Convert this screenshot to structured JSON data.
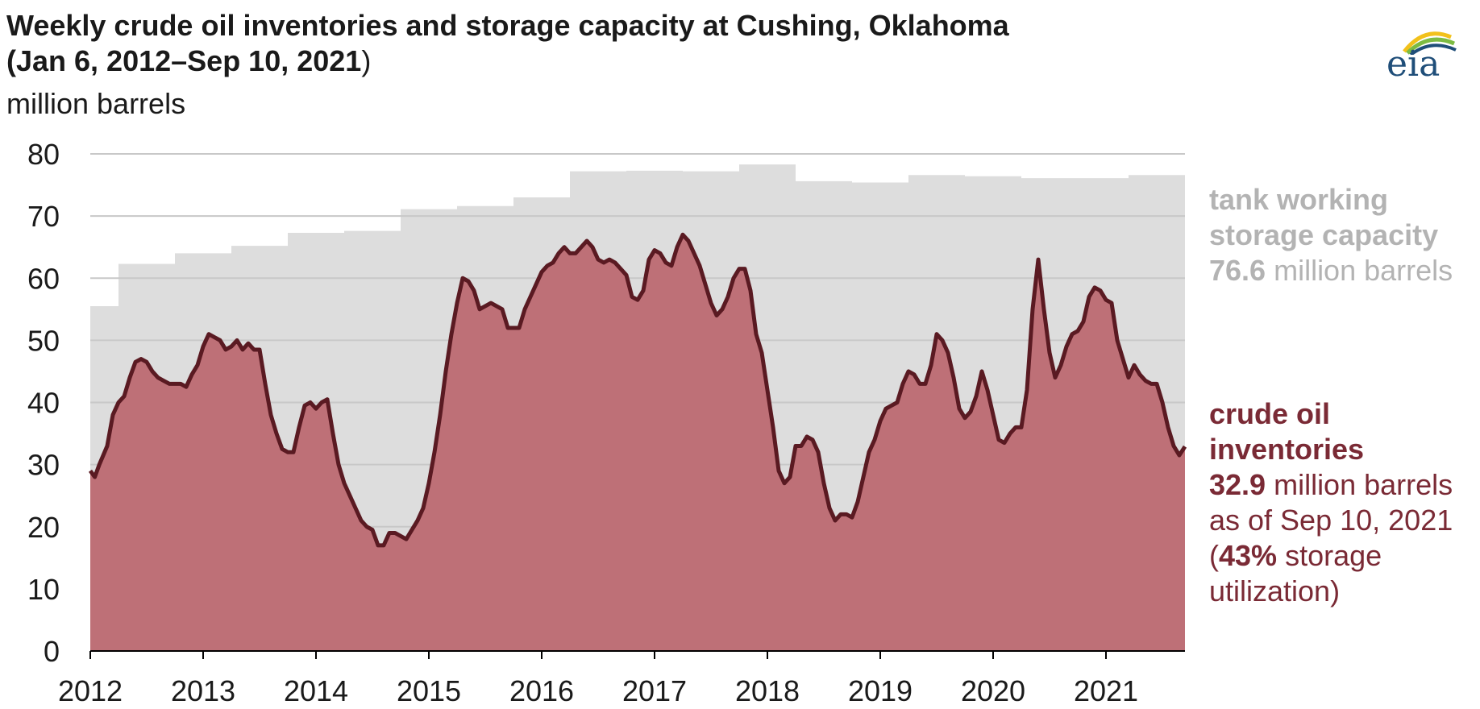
{
  "title_line1": "Weekly crude oil inventories and storage capacity at Cushing, Oklahoma",
  "title_line2": "(Jan 6, 2012–Sep 10, 2021",
  "title_close": ")",
  "units": "million barrels",
  "logo": {
    "text": "eia",
    "colors": {
      "blue": "#1f4e79",
      "green": "#7dbb42",
      "yellow": "#f2c11b"
    }
  },
  "annotations": {
    "capacity_l1": "tank working",
    "capacity_l2": "storage capacity",
    "capacity_value": "76.6",
    "capacity_unit": " million barrels",
    "inventory_l1": "crude oil",
    "inventory_l2": "inventories",
    "inventory_value": "32.9",
    "inventory_unit": " million barrels",
    "inventory_date": "as of Sep 10, 2021",
    "util_open": "(",
    "util_value": "43%",
    "util_rest": " storage",
    "util_l2": "utilization)"
  },
  "colors": {
    "capacity": "#dddddd",
    "inventory_fill": "#be7077",
    "inventory_line": "#5a1a22",
    "grid": "#c8c8c8"
  },
  "chart_data": {
    "type": "area",
    "x_range": [
      2012.0,
      2021.7
    ],
    "ylim": [
      0,
      80
    ],
    "y_ticks": [
      0,
      10,
      20,
      30,
      40,
      50,
      60,
      70,
      80
    ],
    "x_ticks": [
      "2012",
      "2013",
      "2014",
      "2015",
      "2016",
      "2017",
      "2018",
      "2019",
      "2020",
      "2021"
    ],
    "grid": true,
    "series": [
      {
        "name": "tank working storage capacity",
        "shape": "step",
        "points": [
          [
            2012.0,
            55.5
          ],
          [
            2012.25,
            62.3
          ],
          [
            2012.75,
            64.0
          ],
          [
            2013.25,
            65.2
          ],
          [
            2013.75,
            67.3
          ],
          [
            2014.25,
            67.6
          ],
          [
            2014.75,
            71.1
          ],
          [
            2015.25,
            71.6
          ],
          [
            2015.75,
            73.0
          ],
          [
            2016.25,
            77.2
          ],
          [
            2016.75,
            77.3
          ],
          [
            2017.25,
            77.2
          ],
          [
            2017.75,
            78.3
          ],
          [
            2018.25,
            75.6
          ],
          [
            2018.75,
            75.4
          ],
          [
            2019.25,
            76.6
          ],
          [
            2019.75,
            76.4
          ],
          [
            2020.25,
            76.1
          ],
          [
            2020.75,
            76.1
          ],
          [
            2021.2,
            76.6
          ],
          [
            2021.7,
            76.6
          ]
        ]
      },
      {
        "name": "crude oil inventories",
        "points": [
          [
            2012.0,
            29
          ],
          [
            2012.04,
            28
          ],
          [
            2012.08,
            30
          ],
          [
            2012.15,
            33
          ],
          [
            2012.2,
            38
          ],
          [
            2012.25,
            40
          ],
          [
            2012.3,
            41
          ],
          [
            2012.35,
            44
          ],
          [
            2012.4,
            46.5
          ],
          [
            2012.45,
            47
          ],
          [
            2012.5,
            46.5
          ],
          [
            2012.55,
            45
          ],
          [
            2012.6,
            44
          ],
          [
            2012.65,
            43.5
          ],
          [
            2012.7,
            43
          ],
          [
            2012.8,
            43
          ],
          [
            2012.85,
            42.5
          ],
          [
            2012.9,
            44.5
          ],
          [
            2012.95,
            46
          ],
          [
            2013.0,
            49
          ],
          [
            2013.05,
            51
          ],
          [
            2013.1,
            50.5
          ],
          [
            2013.15,
            50
          ],
          [
            2013.2,
            48.5
          ],
          [
            2013.25,
            49
          ],
          [
            2013.3,
            50
          ],
          [
            2013.35,
            48.5
          ],
          [
            2013.4,
            49.5
          ],
          [
            2013.45,
            48.5
          ],
          [
            2013.5,
            48.5
          ],
          [
            2013.55,
            43
          ],
          [
            2013.6,
            38
          ],
          [
            2013.65,
            35
          ],
          [
            2013.7,
            32.5
          ],
          [
            2013.75,
            32
          ],
          [
            2013.8,
            32
          ],
          [
            2013.85,
            36
          ],
          [
            2013.9,
            39.5
          ],
          [
            2013.95,
            40
          ],
          [
            2014.0,
            39
          ],
          [
            2014.05,
            40
          ],
          [
            2014.1,
            40.5
          ],
          [
            2014.15,
            35
          ],
          [
            2014.2,
            30
          ],
          [
            2014.25,
            27
          ],
          [
            2014.3,
            25
          ],
          [
            2014.35,
            23
          ],
          [
            2014.4,
            21
          ],
          [
            2014.45,
            20
          ],
          [
            2014.5,
            19.5
          ],
          [
            2014.55,
            17
          ],
          [
            2014.6,
            17
          ],
          [
            2014.65,
            19
          ],
          [
            2014.7,
            19
          ],
          [
            2014.75,
            18.5
          ],
          [
            2014.8,
            18
          ],
          [
            2014.85,
            19.5
          ],
          [
            2014.9,
            21
          ],
          [
            2014.95,
            23
          ],
          [
            2015.0,
            27
          ],
          [
            2015.05,
            32
          ],
          [
            2015.1,
            38
          ],
          [
            2015.15,
            45
          ],
          [
            2015.2,
            51
          ],
          [
            2015.25,
            56
          ],
          [
            2015.3,
            60
          ],
          [
            2015.35,
            59.5
          ],
          [
            2015.4,
            58
          ],
          [
            2015.45,
            55
          ],
          [
            2015.5,
            55.5
          ],
          [
            2015.55,
            56
          ],
          [
            2015.6,
            55.5
          ],
          [
            2015.65,
            55
          ],
          [
            2015.7,
            52
          ],
          [
            2015.75,
            52
          ],
          [
            2015.8,
            52
          ],
          [
            2015.85,
            55
          ],
          [
            2015.9,
            57
          ],
          [
            2015.95,
            59
          ],
          [
            2016.0,
            61
          ],
          [
            2016.05,
            62
          ],
          [
            2016.1,
            62.5
          ],
          [
            2016.15,
            64
          ],
          [
            2016.2,
            65
          ],
          [
            2016.25,
            64
          ],
          [
            2016.3,
            64
          ],
          [
            2016.35,
            65
          ],
          [
            2016.4,
            66
          ],
          [
            2016.45,
            65
          ],
          [
            2016.5,
            63
          ],
          [
            2016.55,
            62.5
          ],
          [
            2016.6,
            63
          ],
          [
            2016.65,
            62.5
          ],
          [
            2016.7,
            61.5
          ],
          [
            2016.75,
            60.5
          ],
          [
            2016.8,
            57
          ],
          [
            2016.85,
            56.5
          ],
          [
            2016.9,
            58
          ],
          [
            2016.95,
            63
          ],
          [
            2017.0,
            64.5
          ],
          [
            2017.05,
            64
          ],
          [
            2017.1,
            62.5
          ],
          [
            2017.15,
            62
          ],
          [
            2017.2,
            65
          ],
          [
            2017.25,
            67
          ],
          [
            2017.3,
            66
          ],
          [
            2017.35,
            64
          ],
          [
            2017.4,
            62
          ],
          [
            2017.45,
            59
          ],
          [
            2017.5,
            56
          ],
          [
            2017.55,
            54
          ],
          [
            2017.6,
            55
          ],
          [
            2017.65,
            57
          ],
          [
            2017.7,
            60
          ],
          [
            2017.75,
            61.5
          ],
          [
            2017.8,
            61.5
          ],
          [
            2017.85,
            58
          ],
          [
            2017.9,
            51
          ],
          [
            2017.95,
            48
          ],
          [
            2018.0,
            42
          ],
          [
            2018.05,
            36
          ],
          [
            2018.1,
            29
          ],
          [
            2018.15,
            27
          ],
          [
            2018.2,
            28
          ],
          [
            2018.25,
            33
          ],
          [
            2018.3,
            33
          ],
          [
            2018.35,
            34.5
          ],
          [
            2018.4,
            34
          ],
          [
            2018.45,
            32
          ],
          [
            2018.5,
            27
          ],
          [
            2018.55,
            23
          ],
          [
            2018.6,
            21
          ],
          [
            2018.65,
            22
          ],
          [
            2018.7,
            22
          ],
          [
            2018.75,
            21.5
          ],
          [
            2018.8,
            24
          ],
          [
            2018.85,
            28
          ],
          [
            2018.9,
            32
          ],
          [
            2018.95,
            34
          ],
          [
            2019.0,
            37
          ],
          [
            2019.05,
            39
          ],
          [
            2019.1,
            39.5
          ],
          [
            2019.15,
            40
          ],
          [
            2019.2,
            43
          ],
          [
            2019.25,
            45
          ],
          [
            2019.3,
            44.5
          ],
          [
            2019.35,
            43
          ],
          [
            2019.4,
            43
          ],
          [
            2019.45,
            46
          ],
          [
            2019.5,
            51
          ],
          [
            2019.55,
            50
          ],
          [
            2019.6,
            48
          ],
          [
            2019.65,
            44
          ],
          [
            2019.7,
            39
          ],
          [
            2019.75,
            37.5
          ],
          [
            2019.8,
            38.5
          ],
          [
            2019.85,
            41
          ],
          [
            2019.9,
            45
          ],
          [
            2019.95,
            42
          ],
          [
            2020.0,
            38
          ],
          [
            2020.05,
            34
          ],
          [
            2020.1,
            33.5
          ],
          [
            2020.15,
            35
          ],
          [
            2020.2,
            36
          ],
          [
            2020.25,
            36
          ],
          [
            2020.3,
            42
          ],
          [
            2020.35,
            55
          ],
          [
            2020.4,
            63
          ],
          [
            2020.45,
            55
          ],
          [
            2020.5,
            48
          ],
          [
            2020.55,
            44
          ],
          [
            2020.6,
            46
          ],
          [
            2020.65,
            49
          ],
          [
            2020.7,
            51
          ],
          [
            2020.75,
            51.5
          ],
          [
            2020.8,
            53
          ],
          [
            2020.85,
            57
          ],
          [
            2020.9,
            58.5
          ],
          [
            2020.95,
            58
          ],
          [
            2021.0,
            56.5
          ],
          [
            2021.05,
            56
          ],
          [
            2021.1,
            50
          ],
          [
            2021.15,
            47
          ],
          [
            2021.2,
            44
          ],
          [
            2021.25,
            46
          ],
          [
            2021.3,
            44.5
          ],
          [
            2021.35,
            43.5
          ],
          [
            2021.4,
            43
          ],
          [
            2021.45,
            43
          ],
          [
            2021.5,
            40
          ],
          [
            2021.55,
            36
          ],
          [
            2021.6,
            33
          ],
          [
            2021.65,
            31.5
          ],
          [
            2021.7,
            32.9
          ]
        ]
      }
    ]
  }
}
